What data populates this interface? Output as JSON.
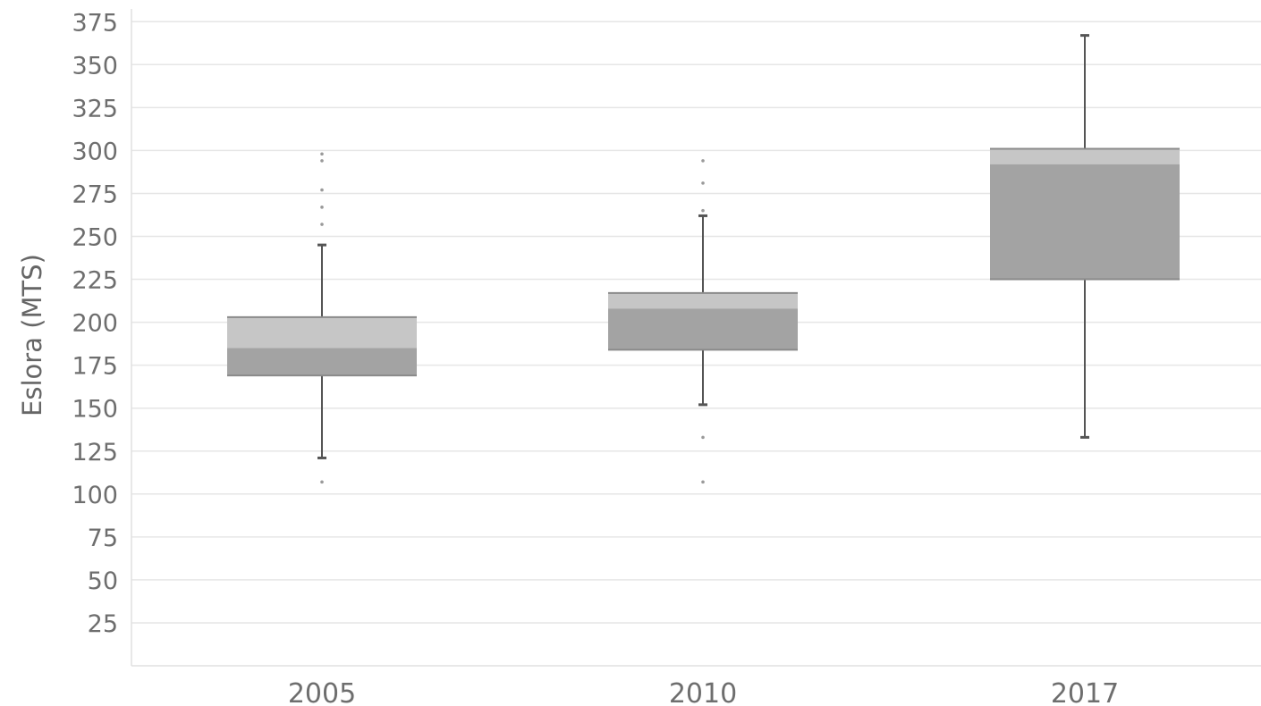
{
  "chart_data": {
    "type": "boxplot",
    "title": "",
    "xlabel": "",
    "ylabel": "Eslora (MTS)",
    "ylim": [
      0,
      380
    ],
    "yticks": [
      25,
      50,
      75,
      100,
      125,
      150,
      175,
      200,
      225,
      250,
      275,
      300,
      325,
      350,
      375
    ],
    "grid": true,
    "categories": [
      "2005",
      "2010",
      "2017"
    ],
    "boxes": [
      {
        "category": "2005",
        "whisker_low": 121,
        "q1": 169,
        "median": 185,
        "q3": 203,
        "whisker_high": 245,
        "outliers": [
          107,
          257,
          267,
          277,
          294,
          298
        ]
      },
      {
        "category": "2010",
        "whisker_low": 152,
        "q1": 184,
        "median": 208,
        "q3": 217,
        "whisker_high": 262,
        "outliers": [
          107,
          133,
          265,
          281,
          294
        ]
      },
      {
        "category": "2017",
        "whisker_low": 133,
        "q1": 225,
        "median": 292,
        "q3": 301,
        "whisker_high": 367,
        "outliers": []
      }
    ],
    "colors": {
      "lower_box": "#a3a3a3",
      "upper_box": "#c6c6c6",
      "box_border": "#8a8a8a",
      "whisker": "#555555",
      "grid": "#e6e6e6",
      "outlier": "#9a9a9a"
    }
  }
}
